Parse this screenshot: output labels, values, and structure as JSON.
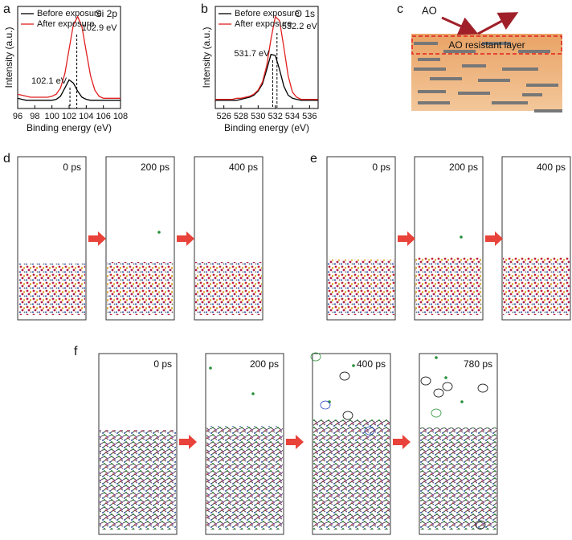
{
  "chart_data": [
    {
      "type": "line",
      "xlabel": "Binding energy (eV)",
      "ylabel": "Intensity (a.u.)",
      "annotation": "Si 2p",
      "x": [
        96,
        96.5,
        97,
        97.5,
        98,
        98.5,
        99,
        99.5,
        100,
        100.5,
        101,
        101.5,
        102,
        102.5,
        103,
        103.5,
        104,
        104.5,
        105,
        105.5,
        106,
        106.5,
        107,
        107.5,
        108
      ],
      "series": [
        {
          "name": "Before exposure",
          "color": "#000000",
          "values": [
            10,
            9,
            8,
            8,
            8,
            8,
            8,
            8,
            8,
            9,
            12,
            20,
            28,
            25,
            17,
            11,
            9,
            8,
            8,
            8,
            8,
            8,
            8,
            8,
            8
          ]
        },
        {
          "name": "After exposure",
          "color": "#e02020",
          "values": [
            14,
            13,
            12,
            11,
            11,
            11,
            11,
            11,
            12,
            14,
            20,
            34,
            58,
            82,
            90,
            80,
            56,
            32,
            18,
            12,
            10,
            10,
            10,
            10,
            10
          ]
        }
      ],
      "peaks": [
        {
          "value": 102.1,
          "label": "102.1 eV"
        },
        {
          "value": 102.9,
          "label": "102.9 eV"
        }
      ],
      "xlim": [
        96,
        108
      ],
      "xticks": [
        96,
        98,
        100,
        102,
        104,
        106,
        108
      ],
      "ylim": [
        0,
        100
      ]
    },
    {
      "type": "line",
      "xlabel": "Binding energy (eV)",
      "ylabel": "Intensity (a.u.)",
      "annotation": "O 1s",
      "x": [
        525,
        525.5,
        526,
        526.5,
        527,
        527.5,
        528,
        528.5,
        529,
        529.5,
        530,
        530.5,
        531,
        531.5,
        532,
        532.5,
        533,
        533.5,
        534,
        534.5,
        535,
        535.5,
        536,
        536.5,
        537
      ],
      "series": [
        {
          "name": "Before exposure",
          "color": "#000000",
          "values": [
            8,
            8,
            8,
            8,
            8,
            8,
            9,
            10,
            11,
            13,
            17,
            24,
            38,
            53,
            52,
            38,
            22,
            13,
            10,
            9,
            8,
            8,
            8,
            8,
            8
          ]
        },
        {
          "name": "After exposure",
          "color": "#e02020",
          "values": [
            9,
            9,
            9,
            9,
            9,
            10,
            10,
            11,
            12,
            14,
            18,
            26,
            42,
            68,
            90,
            86,
            60,
            32,
            16,
            11,
            9,
            9,
            9,
            9,
            9
          ]
        }
      ],
      "peaks": [
        {
          "value": 531.7,
          "label": "531.7 eV"
        },
        {
          "value": 532.2,
          "label": "532.2 eV"
        }
      ],
      "xlim": [
        525,
        537
      ],
      "xticks": [
        526,
        528,
        530,
        532,
        534,
        536
      ],
      "ylim": [
        0,
        100
      ]
    }
  ],
  "panel_labels": [
    "a",
    "b",
    "c",
    "d",
    "e",
    "f"
  ],
  "schematic": {
    "labels": [
      "AO",
      "AO resistant layer"
    ]
  },
  "snapshots": {
    "d": [
      "0 ps",
      "200 ps",
      "400 ps"
    ],
    "e": [
      "0 ps",
      "200 ps",
      "400 ps"
    ],
    "f": [
      "0 ps",
      "200 ps",
      "400 ps",
      "780 ps"
    ]
  }
}
